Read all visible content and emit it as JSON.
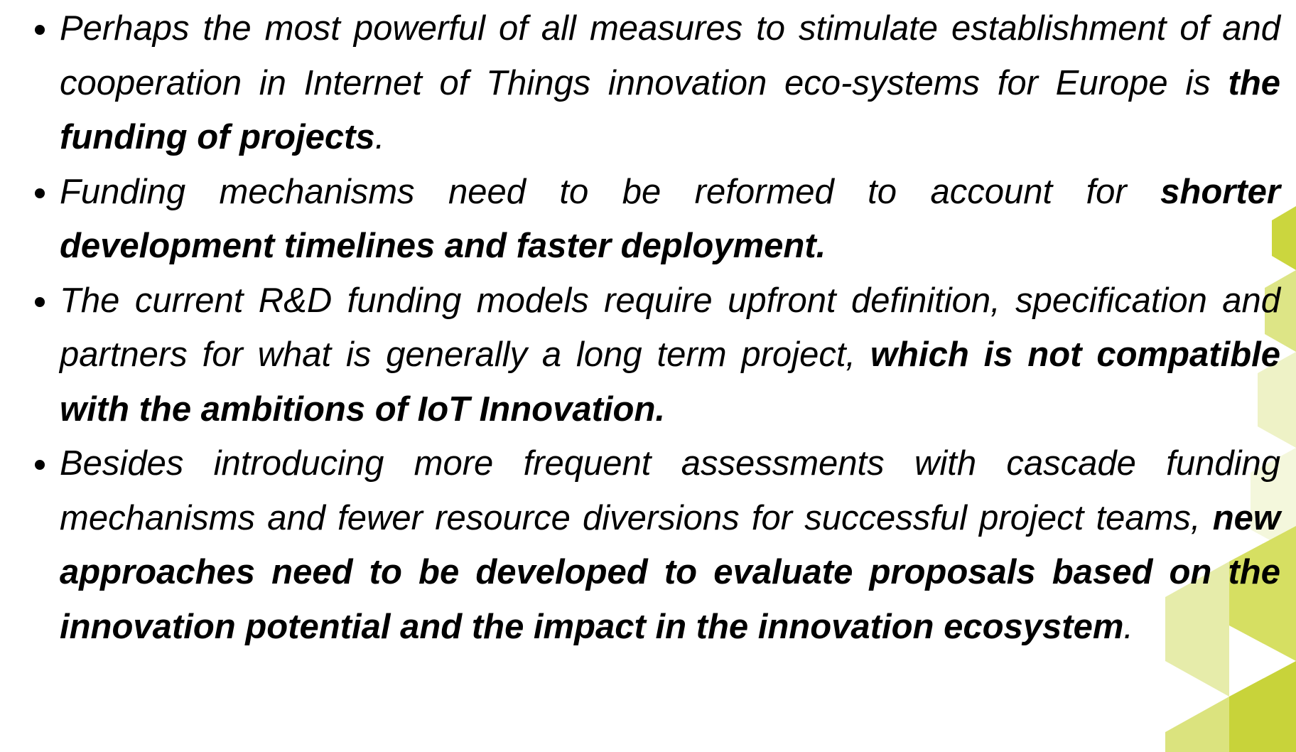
{
  "bullets": [
    {
      "segments": [
        {
          "text": "Perhaps the most powerful of all measures to stimulate establishment of and cooperation in Internet of Things innovation eco-systems for Europe is ",
          "bold": false
        },
        {
          "text": "the funding of projects",
          "bold": true
        },
        {
          "text": ".",
          "bold": false
        }
      ]
    },
    {
      "segments": [
        {
          "text": "Funding mechanisms need to be reformed to account for ",
          "bold": false
        },
        {
          "text": "shorter development timelines and faster deployment.",
          "bold": true
        }
      ]
    },
    {
      "segments": [
        {
          "text": "The current R&D funding models require upfront definition, specification and partners for what is generally a long term project, ",
          "bold": false
        },
        {
          "text": "which is not compatible with the ambitions of IoT Innovation.",
          "bold": true
        }
      ]
    },
    {
      "segments": [
        {
          "text": "Besides introducing more frequent assessments with cascade funding mechanisms and fewer resource diversions for successful project teams, ",
          "bold": false
        },
        {
          "text": "new approaches need to be developed to evaluate proposals based on the innovation potential and the impact in the innovation ecosystem",
          "bold": true
        },
        {
          "text": ".",
          "bold": false
        }
      ]
    }
  ]
}
